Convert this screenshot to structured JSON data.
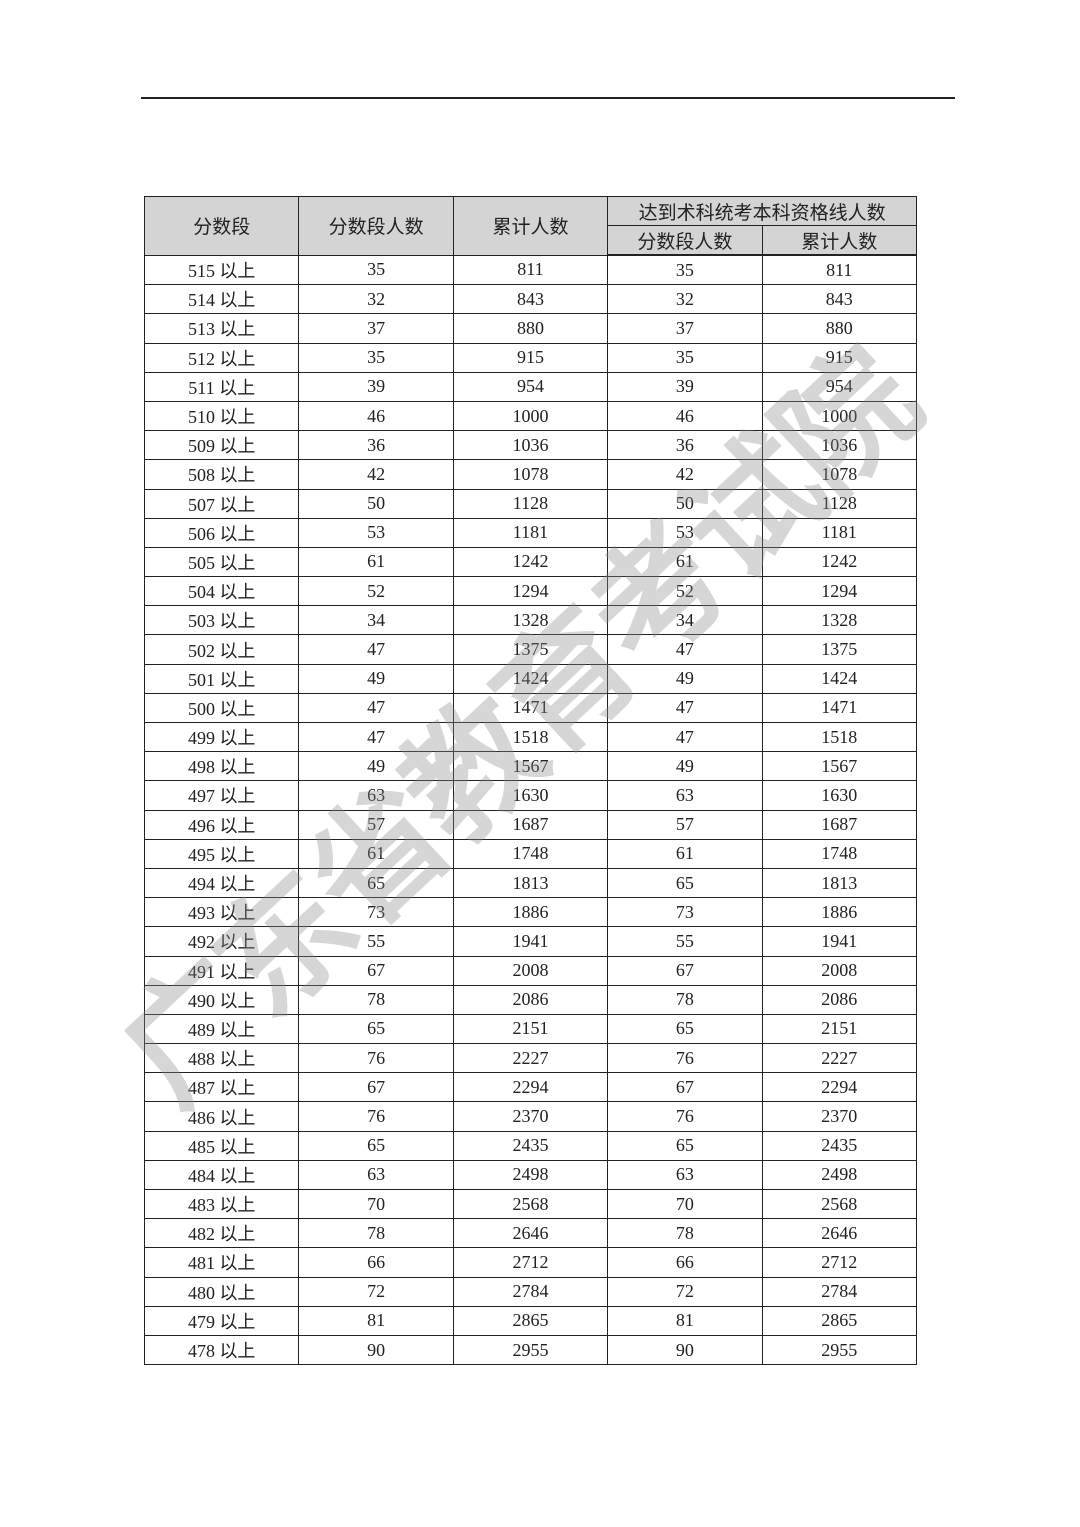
{
  "watermark": "广东省教育考试院",
  "table": {
    "headers": {
      "score_band": "分数段",
      "band_count": "分数段人数",
      "cumulative": "累计人数",
      "group_title": "达到术科统考本科资格线人数",
      "group_band_count": "分数段人数",
      "group_cumulative": "累计人数"
    },
    "rows": [
      [
        "515 以上",
        "35",
        "811",
        "35",
        "811"
      ],
      [
        "514 以上",
        "32",
        "843",
        "32",
        "843"
      ],
      [
        "513 以上",
        "37",
        "880",
        "37",
        "880"
      ],
      [
        "512 以上",
        "35",
        "915",
        "35",
        "915"
      ],
      [
        "511 以上",
        "39",
        "954",
        "39",
        "954"
      ],
      [
        "510 以上",
        "46",
        "1000",
        "46",
        "1000"
      ],
      [
        "509 以上",
        "36",
        "1036",
        "36",
        "1036"
      ],
      [
        "508 以上",
        "42",
        "1078",
        "42",
        "1078"
      ],
      [
        "507 以上",
        "50",
        "1128",
        "50",
        "1128"
      ],
      [
        "506 以上",
        "53",
        "1181",
        "53",
        "1181"
      ],
      [
        "505 以上",
        "61",
        "1242",
        "61",
        "1242"
      ],
      [
        "504 以上",
        "52",
        "1294",
        "52",
        "1294"
      ],
      [
        "503 以上",
        "34",
        "1328",
        "34",
        "1328"
      ],
      [
        "502 以上",
        "47",
        "1375",
        "47",
        "1375"
      ],
      [
        "501 以上",
        "49",
        "1424",
        "49",
        "1424"
      ],
      [
        "500 以上",
        "47",
        "1471",
        "47",
        "1471"
      ],
      [
        "499 以上",
        "47",
        "1518",
        "47",
        "1518"
      ],
      [
        "498 以上",
        "49",
        "1567",
        "49",
        "1567"
      ],
      [
        "497 以上",
        "63",
        "1630",
        "63",
        "1630"
      ],
      [
        "496 以上",
        "57",
        "1687",
        "57",
        "1687"
      ],
      [
        "495 以上",
        "61",
        "1748",
        "61",
        "1748"
      ],
      [
        "494 以上",
        "65",
        "1813",
        "65",
        "1813"
      ],
      [
        "493 以上",
        "73",
        "1886",
        "73",
        "1886"
      ],
      [
        "492 以上",
        "55",
        "1941",
        "55",
        "1941"
      ],
      [
        "491 以上",
        "67",
        "2008",
        "67",
        "2008"
      ],
      [
        "490 以上",
        "78",
        "2086",
        "78",
        "2086"
      ],
      [
        "489 以上",
        "65",
        "2151",
        "65",
        "2151"
      ],
      [
        "488 以上",
        "76",
        "2227",
        "76",
        "2227"
      ],
      [
        "487 以上",
        "67",
        "2294",
        "67",
        "2294"
      ],
      [
        "486 以上",
        "76",
        "2370",
        "76",
        "2370"
      ],
      [
        "485 以上",
        "65",
        "2435",
        "65",
        "2435"
      ],
      [
        "484 以上",
        "63",
        "2498",
        "63",
        "2498"
      ],
      [
        "483 以上",
        "70",
        "2568",
        "70",
        "2568"
      ],
      [
        "482 以上",
        "78",
        "2646",
        "78",
        "2646"
      ],
      [
        "481 以上",
        "66",
        "2712",
        "66",
        "2712"
      ],
      [
        "480 以上",
        "72",
        "2784",
        "72",
        "2784"
      ],
      [
        "479 以上",
        "81",
        "2865",
        "81",
        "2865"
      ],
      [
        "478 以上",
        "90",
        "2955",
        "90",
        "2955"
      ]
    ]
  }
}
